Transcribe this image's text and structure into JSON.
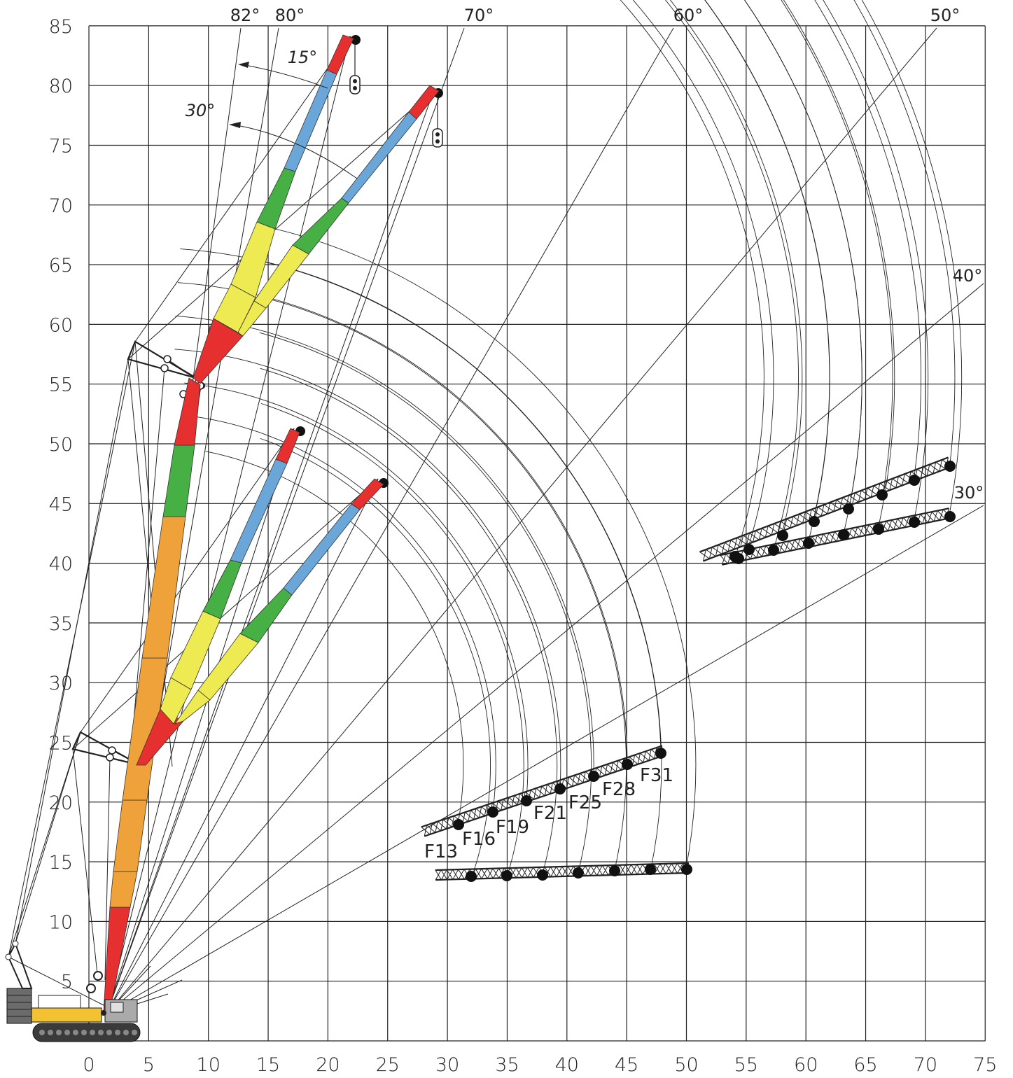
{
  "colors": {
    "red": "#e63030",
    "blue": "#6aa6d8",
    "green": "#46b045",
    "yellow": "#eeea52",
    "orange": "#f0a23a",
    "crane_body": "#f2c233",
    "line": "#222222"
  },
  "axes": {
    "x_ticks": [
      "0",
      "5",
      "10",
      "15",
      "20",
      "25",
      "30",
      "35",
      "40",
      "45",
      "50",
      "55",
      "60",
      "65",
      "70",
      "75"
    ],
    "y_ticks": [
      "5",
      "10",
      "15",
      "20",
      "25",
      "30",
      "35",
      "40",
      "45",
      "50",
      "55",
      "60",
      "65",
      "70",
      "75",
      "80",
      "85"
    ]
  },
  "angle_labels": [
    "82°",
    "80°",
    "70°",
    "60°",
    "50°",
    "40°",
    "30°"
  ],
  "offset_labels": [
    "15°",
    "30°"
  ],
  "jib_labels": [
    "F13",
    "F16",
    "F19",
    "F21",
    "F25",
    "F28",
    "F31"
  ],
  "chart_data": {
    "type": "diagram",
    "x_range": [
      0,
      75
    ],
    "y_range": [
      0,
      85
    ],
    "main_boom_angles_deg": [
      82,
      80,
      70,
      60,
      50,
      40,
      30
    ],
    "jib_offsets_deg": [
      15,
      30
    ],
    "jib_lengths": [
      "F13",
      "F16",
      "F19",
      "F21",
      "F25",
      "F28",
      "F31"
    ]
  }
}
